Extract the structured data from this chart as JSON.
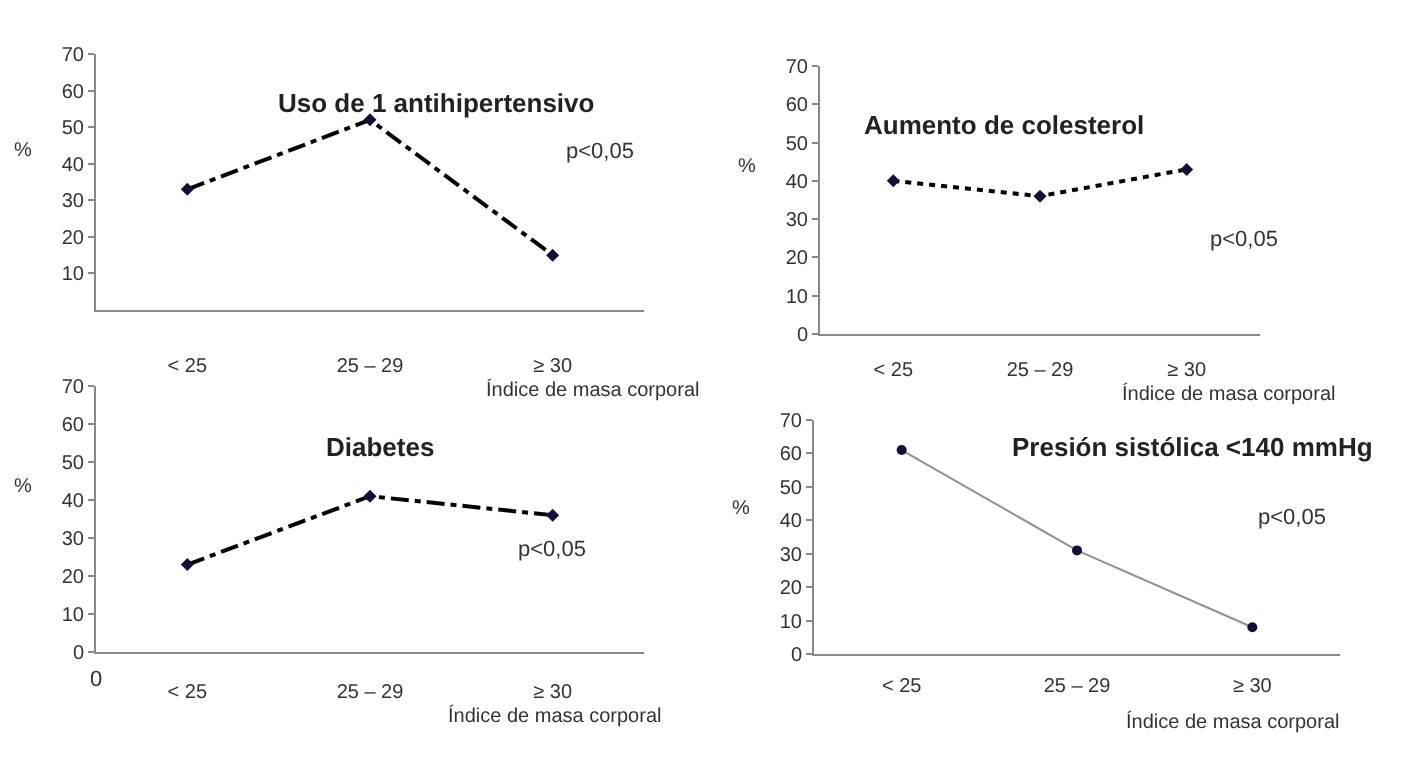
{
  "chart_data": [
    {
      "type": "line",
      "title": "Uso de 1 antihipertensivo",
      "xlabel": "Índice de masa corporal",
      "ylabel": "%",
      "categories": [
        "< 25",
        "25 – 29",
        "≥ 30"
      ],
      "series": [
        {
          "color": "#000000",
          "values": [
            33,
            52,
            15
          ]
        }
      ],
      "ylim": [
        0,
        70
      ],
      "yticks": [
        10,
        20,
        30,
        40,
        50,
        60,
        70
      ],
      "grid": false,
      "marker": "diamond",
      "line_style": "dashed",
      "annotations": [
        "p<0,05"
      ]
    },
    {
      "type": "line",
      "title": "Aumento de colesterol",
      "xlabel": "Índice de masa corporal",
      "ylabel": "%",
      "categories": [
        "< 25",
        "25 – 29",
        "≥ 30"
      ],
      "series": [
        {
          "color": "#000000",
          "values": [
            40,
            36,
            43
          ]
        }
      ],
      "ylim": [
        0,
        70
      ],
      "yticks": [
        0,
        10,
        20,
        30,
        40,
        50,
        60,
        70
      ],
      "grid": false,
      "marker": "diamond",
      "line_style": "dotted",
      "annotations": [
        "p<0,05"
      ]
    },
    {
      "type": "line",
      "title": "Diabetes",
      "xlabel": "Índice de masa corporal",
      "ylabel": "%",
      "categories": [
        "< 25",
        "25 – 29",
        "≥ 30"
      ],
      "series": [
        {
          "color": "#000000",
          "values": [
            23,
            41,
            36
          ]
        }
      ],
      "ylim": [
        0,
        70
      ],
      "yticks": [
        0,
        10,
        20,
        30,
        40,
        50,
        60,
        70
      ],
      "grid": false,
      "marker": "diamond",
      "line_style": "dashed",
      "annotations": [
        "p<0,05",
        "0"
      ]
    },
    {
      "type": "line",
      "title": "Presión sistólica <140 mmHg",
      "xlabel": "Índice de masa corporal",
      "ylabel": "%",
      "categories": [
        "< 25",
        "25 – 29",
        "≥ 30"
      ],
      "series": [
        {
          "color": "#909090",
          "values": [
            61,
            31,
            8
          ]
        }
      ],
      "ylim": [
        0,
        70
      ],
      "yticks": [
        0,
        10,
        20,
        30,
        40,
        50,
        60,
        70
      ],
      "grid": false,
      "marker": "circle",
      "line_style": "solid",
      "annotations": [
        "p<0,05"
      ]
    }
  ]
}
